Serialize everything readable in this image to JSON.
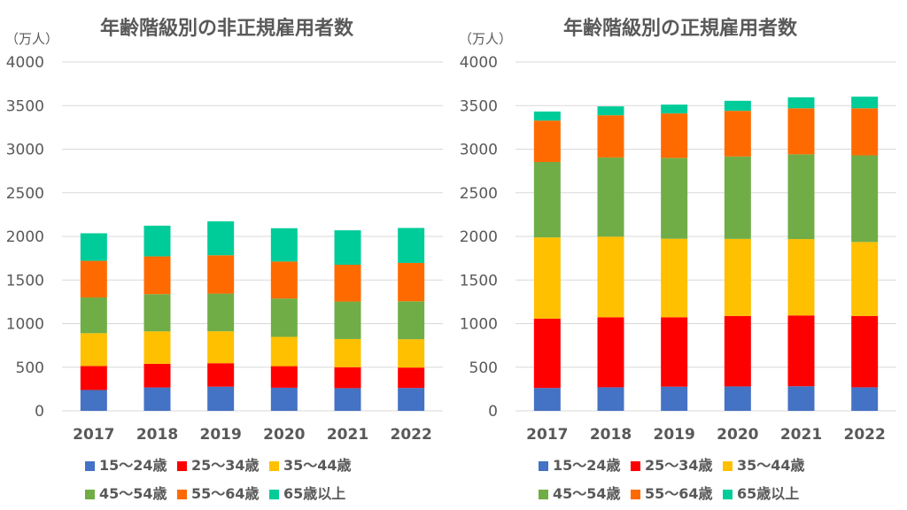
{
  "unit_label": "（万人）",
  "chart_data": [
    {
      "type": "bar",
      "stacked": true,
      "title": "年齢階級別の非正規雇用者数",
      "categories": [
        "2017",
        "2018",
        "2019",
        "2020",
        "2021",
        "2022"
      ],
      "ylim": [
        0,
        4000
      ],
      "yticks": [
        "0",
        "500",
        "1000",
        "1500",
        "2000",
        "2500",
        "3000",
        "3500",
        "4000"
      ],
      "grid": true,
      "legend_position": "bottom",
      "series": [
        {
          "name": "15～24歳",
          "color": "#4472C4",
          "values": [
            239,
            268,
            277,
            265,
            260,
            262
          ]
        },
        {
          "name": "25～34歳",
          "color": "#FF0000",
          "values": [
            275,
            271,
            269,
            247,
            240,
            234
          ]
        },
        {
          "name": "35～44歳",
          "color": "#FFC000",
          "values": [
            376,
            372,
            366,
            336,
            323,
            325
          ]
        },
        {
          "name": "45～54歳",
          "color": "#70AD47",
          "values": [
            410,
            427,
            432,
            440,
            430,
            435
          ]
        },
        {
          "name": "55～64歳",
          "color": "#FF6A00",
          "values": [
            420,
            433,
            440,
            424,
            422,
            440
          ]
        },
        {
          "name": "65歳以上",
          "color": "#00CC99",
          "values": [
            316,
            352,
            389,
            382,
            395,
            401
          ]
        }
      ]
    },
    {
      "type": "bar",
      "stacked": true,
      "title": "年齢階級別の正規雇用者数",
      "categories": [
        "2017",
        "2018",
        "2019",
        "2020",
        "2021",
        "2022"
      ],
      "ylim": [
        0,
        4000
      ],
      "yticks": [
        "0",
        "500",
        "1000",
        "1500",
        "2000",
        "2500",
        "3000",
        "3500",
        "4000"
      ],
      "grid": true,
      "legend_position": "bottom",
      "series": [
        {
          "name": "15～24歳",
          "color": "#4472C4",
          "values": [
            262,
            270,
            277,
            280,
            282,
            270
          ]
        },
        {
          "name": "25～34歳",
          "color": "#FF0000",
          "values": [
            796,
            803,
            796,
            808,
            812,
            818
          ]
        },
        {
          "name": "35～44歳",
          "color": "#FFC000",
          "values": [
            930,
            924,
            900,
            883,
            875,
            848
          ]
        },
        {
          "name": "45～54歳",
          "color": "#70AD47",
          "values": [
            865,
            908,
            927,
            945,
            972,
            993
          ]
        },
        {
          "name": "55～64歳",
          "color": "#FF6A00",
          "values": [
            475,
            484,
            510,
            524,
            528,
            540
          ]
        },
        {
          "name": "65歳以上",
          "color": "#00CC99",
          "values": [
            104,
            102,
            101,
            115,
            126,
            133
          ]
        }
      ]
    }
  ]
}
